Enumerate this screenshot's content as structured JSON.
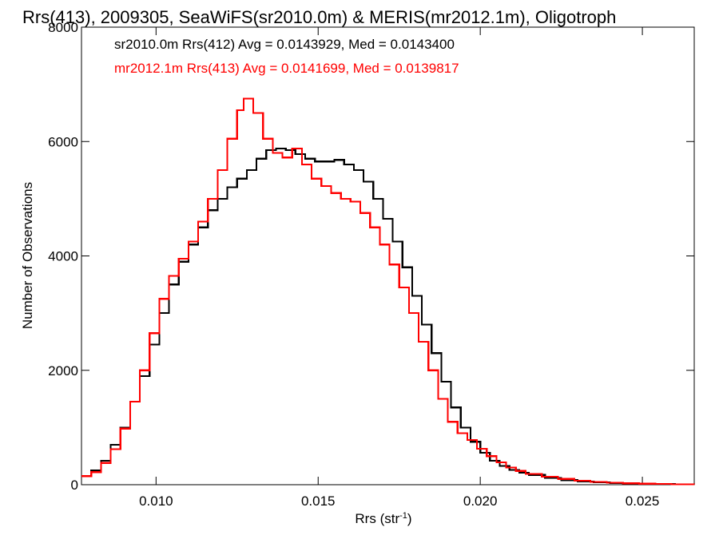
{
  "chart_data": {
    "type": "line",
    "title": "Rrs(413), 2009305, SeaWiFS(sr2010.0m) & MERIS(mr2012.1m), Oligotroph",
    "xlabel": "Rrs (str",
    "xlabel_superscript": "-1",
    "xlabel_suffix": ")",
    "ylabel": "Number of Observations",
    "xlim": [
      0.0077,
      0.0266
    ],
    "ylim": [
      0,
      8000
    ],
    "xticks": [
      0.01,
      0.015,
      0.02,
      0.025
    ],
    "xtick_labels": [
      "0.010",
      "0.015",
      "0.020",
      "0.025"
    ],
    "yticks": [
      0,
      2000,
      4000,
      6000,
      8000
    ],
    "ytick_labels": [
      "0",
      "2000",
      "4000",
      "6000",
      "8000"
    ],
    "grid": false,
    "legend_placement": "top-left",
    "annotations": [
      {
        "text": "sr2010.0m Rrs(412) Avg = 0.0143929, Med = 0.0143400",
        "color": "#000000"
      },
      {
        "text": "mr2012.1m Rrs(413) Avg = 0.0141699, Med = 0.0139817",
        "color": "#ff0000"
      }
    ],
    "series": [
      {
        "color": "#000000",
        "points": [
          [
            0.0077,
            150
          ],
          [
            0.008,
            250
          ],
          [
            0.0083,
            420
          ],
          [
            0.0086,
            700
          ],
          [
            0.0089,
            1000
          ],
          [
            0.0092,
            1450
          ],
          [
            0.0095,
            1900
          ],
          [
            0.0098,
            2450
          ],
          [
            0.0101,
            3000
          ],
          [
            0.0104,
            3500
          ],
          [
            0.0107,
            3900
          ],
          [
            0.011,
            4200
          ],
          [
            0.0113,
            4500
          ],
          [
            0.0116,
            4800
          ],
          [
            0.0119,
            5000
          ],
          [
            0.0122,
            5200
          ],
          [
            0.0125,
            5350
          ],
          [
            0.0128,
            5500
          ],
          [
            0.0131,
            5700
          ],
          [
            0.0134,
            5850
          ],
          [
            0.0137,
            5880
          ],
          [
            0.014,
            5850
          ],
          [
            0.0143,
            5780
          ],
          [
            0.0146,
            5700
          ],
          [
            0.0149,
            5650
          ],
          [
            0.0152,
            5650
          ],
          [
            0.0155,
            5680
          ],
          [
            0.0158,
            5600
          ],
          [
            0.0161,
            5500
          ],
          [
            0.0164,
            5300
          ],
          [
            0.0167,
            5000
          ],
          [
            0.017,
            4650
          ],
          [
            0.0173,
            4250
          ],
          [
            0.0176,
            3800
          ],
          [
            0.0179,
            3300
          ],
          [
            0.0182,
            2800
          ],
          [
            0.0185,
            2300
          ],
          [
            0.0188,
            1800
          ],
          [
            0.0191,
            1350
          ],
          [
            0.0194,
            1000
          ],
          [
            0.0197,
            750
          ],
          [
            0.02,
            560
          ],
          [
            0.0203,
            420
          ],
          [
            0.0206,
            330
          ],
          [
            0.0209,
            260
          ],
          [
            0.0212,
            210
          ],
          [
            0.0215,
            170
          ],
          [
            0.022,
            120
          ],
          [
            0.0225,
            80
          ],
          [
            0.023,
            55
          ],
          [
            0.0235,
            40
          ],
          [
            0.024,
            30
          ],
          [
            0.0245,
            22
          ],
          [
            0.025,
            15
          ],
          [
            0.0255,
            10
          ],
          [
            0.026,
            8
          ],
          [
            0.0266,
            5
          ]
        ]
      },
      {
        "color": "#ff0000",
        "points": [
          [
            0.0077,
            150
          ],
          [
            0.008,
            220
          ],
          [
            0.0083,
            380
          ],
          [
            0.0086,
            620
          ],
          [
            0.0089,
            980
          ],
          [
            0.0092,
            1450
          ],
          [
            0.0095,
            2000
          ],
          [
            0.0098,
            2650
          ],
          [
            0.0101,
            3250
          ],
          [
            0.0104,
            3650
          ],
          [
            0.0107,
            3950
          ],
          [
            0.011,
            4250
          ],
          [
            0.0113,
            4600
          ],
          [
            0.0116,
            5000
          ],
          [
            0.0119,
            5500
          ],
          [
            0.0122,
            6050
          ],
          [
            0.0125,
            6550
          ],
          [
            0.0127,
            6750
          ],
          [
            0.013,
            6500
          ],
          [
            0.0133,
            6050
          ],
          [
            0.0136,
            5800
          ],
          [
            0.0139,
            5720
          ],
          [
            0.0142,
            5880
          ],
          [
            0.0145,
            5600
          ],
          [
            0.0148,
            5350
          ],
          [
            0.0151,
            5220
          ],
          [
            0.0154,
            5100
          ],
          [
            0.0157,
            5000
          ],
          [
            0.016,
            4950
          ],
          [
            0.0163,
            4750
          ],
          [
            0.0166,
            4500
          ],
          [
            0.0169,
            4200
          ],
          [
            0.0172,
            3850
          ],
          [
            0.0175,
            3450
          ],
          [
            0.0178,
            3000
          ],
          [
            0.0181,
            2500
          ],
          [
            0.0184,
            2000
          ],
          [
            0.0187,
            1500
          ],
          [
            0.019,
            1100
          ],
          [
            0.0193,
            900
          ],
          [
            0.0196,
            780
          ],
          [
            0.0199,
            630
          ],
          [
            0.0202,
            500
          ],
          [
            0.0205,
            390
          ],
          [
            0.0208,
            300
          ],
          [
            0.0211,
            240
          ],
          [
            0.0214,
            190
          ],
          [
            0.0219,
            140
          ],
          [
            0.0224,
            100
          ],
          [
            0.0229,
            70
          ],
          [
            0.0234,
            50
          ],
          [
            0.0239,
            35
          ],
          [
            0.0244,
            25
          ],
          [
            0.0249,
            18
          ],
          [
            0.0254,
            12
          ],
          [
            0.0259,
            9
          ],
          [
            0.0266,
            6
          ]
        ]
      }
    ]
  }
}
